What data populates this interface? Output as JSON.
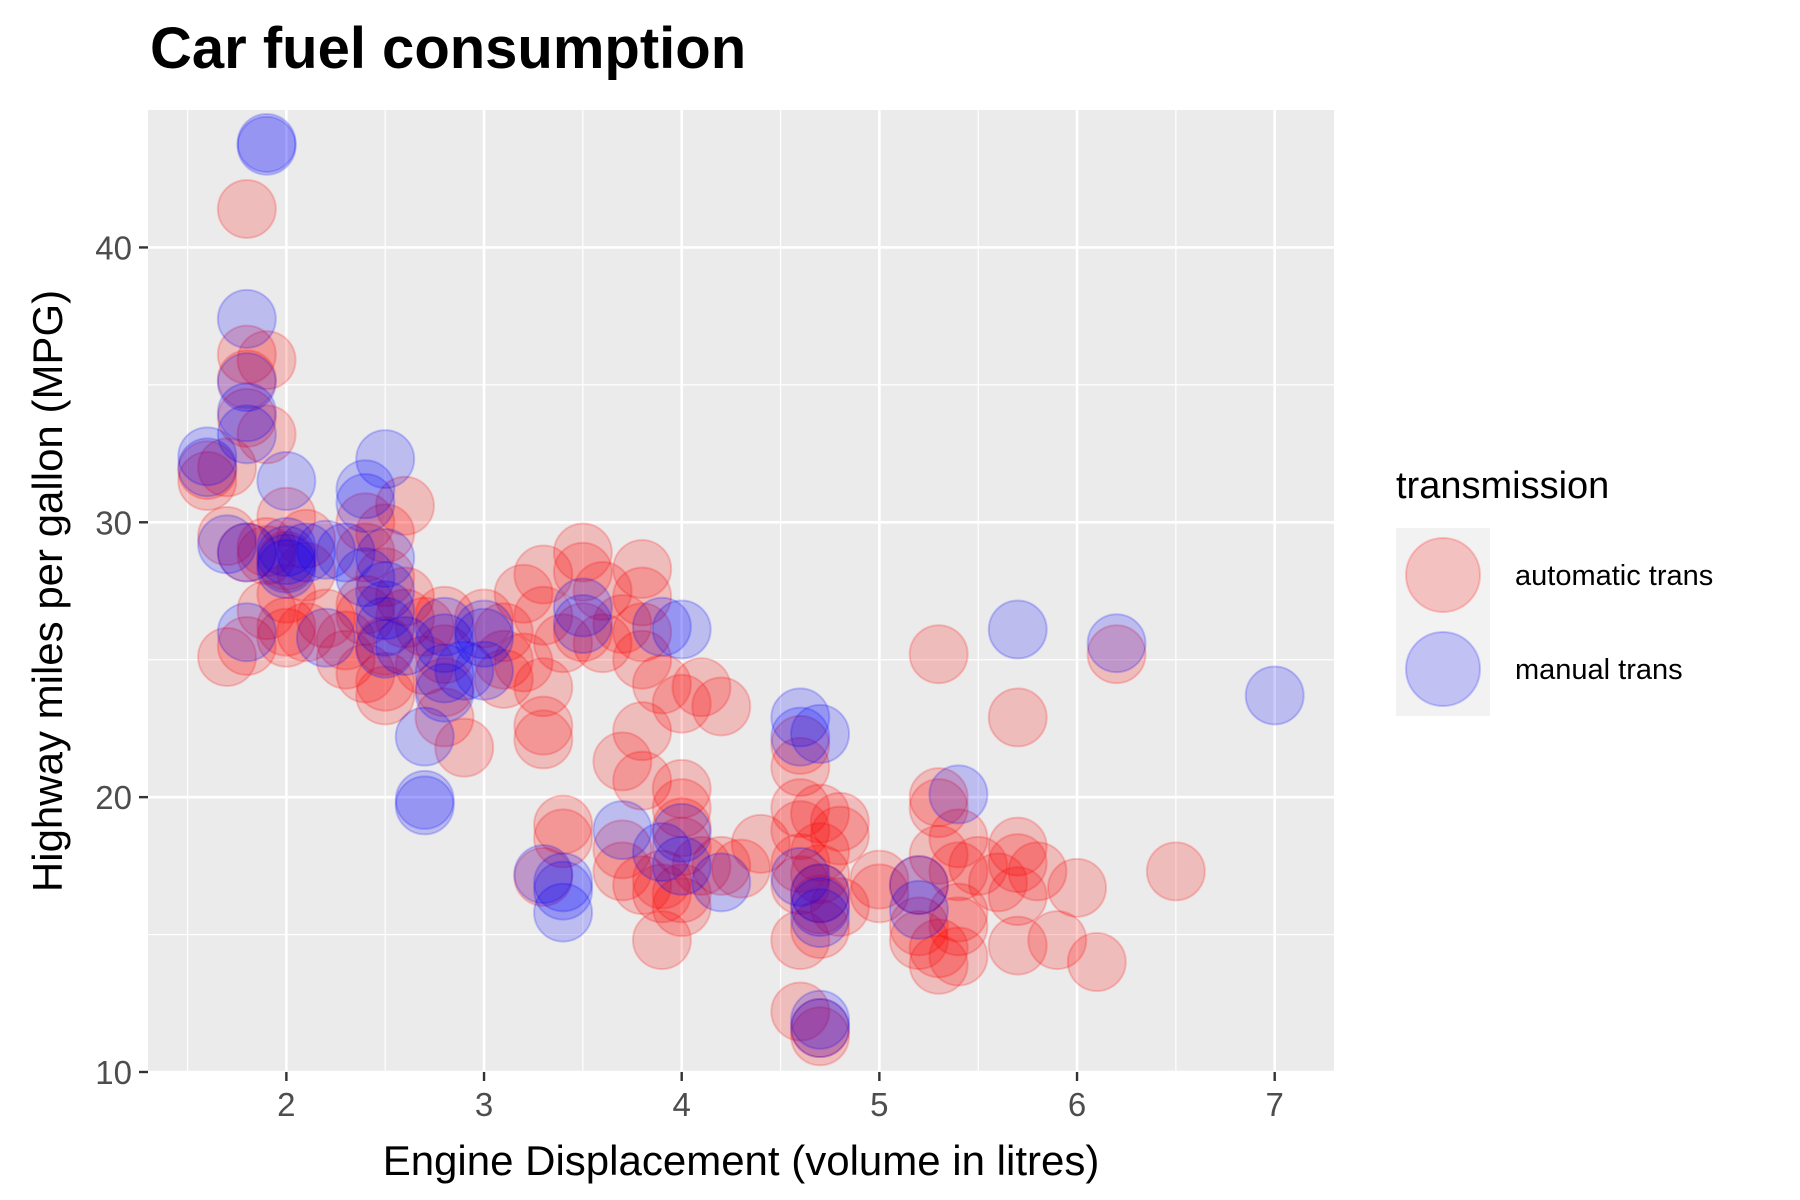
{
  "chart_data": {
    "type": "scatter",
    "title": "Car fuel consumption",
    "xlabel": "Engine Displacement (volume in litres)",
    "ylabel": "Highway miles per gallon (MPG)",
    "xlim": [
      1.3,
      7.3
    ],
    "ylim": [
      10,
      45
    ],
    "xticks": [
      2,
      3,
      4,
      5,
      6,
      7
    ],
    "yticks": [
      10,
      20,
      30,
      40
    ],
    "grid": true,
    "background": "#ebebeb",
    "legend": {
      "title": "transmission",
      "position": "right",
      "entries": [
        "automatic trans",
        "manual trans"
      ]
    },
    "series": [
      {
        "name": "automatic trans",
        "color": "#ff0000",
        "opacity": 0.2,
        "points": [
          [
            1.6,
            31.5
          ],
          [
            1.7,
            32.0
          ],
          [
            1.6,
            31.9
          ],
          [
            1.8,
            41.4
          ],
          [
            1.8,
            36.1
          ],
          [
            1.9,
            35.9
          ],
          [
            1.8,
            35.2
          ],
          [
            1.9,
            33.2
          ],
          [
            1.8,
            33.8
          ],
          [
            1.7,
            29.5
          ],
          [
            1.8,
            28.9
          ],
          [
            1.9,
            29.1
          ],
          [
            1.7,
            25.1
          ],
          [
            1.8,
            25.5
          ],
          [
            2.0,
            30.2
          ],
          [
            2.1,
            29.4
          ],
          [
            1.9,
            28.8
          ],
          [
            2.0,
            28.6
          ],
          [
            2.1,
            28.2
          ],
          [
            2.0,
            27.4
          ],
          [
            1.9,
            26.8
          ],
          [
            2.0,
            26.2
          ],
          [
            2.1,
            26.0
          ],
          [
            2.0,
            25.8
          ],
          [
            2.2,
            26.5
          ],
          [
            2.3,
            25.7
          ],
          [
            2.4,
            27.0
          ],
          [
            2.4,
            26.6
          ],
          [
            2.5,
            25.5
          ],
          [
            2.3,
            25.0
          ],
          [
            2.4,
            24.5
          ],
          [
            2.5,
            24.2
          ],
          [
            2.5,
            23.7
          ],
          [
            2.4,
            30.0
          ],
          [
            2.5,
            29.6
          ],
          [
            2.4,
            28.9
          ],
          [
            2.6,
            30.6
          ],
          [
            2.5,
            28.0
          ],
          [
            2.6,
            27.3
          ],
          [
            2.6,
            26.5
          ],
          [
            2.7,
            26.2
          ],
          [
            2.8,
            26.6
          ],
          [
            2.8,
            25.2
          ],
          [
            2.7,
            24.8
          ],
          [
            2.8,
            24.0
          ],
          [
            2.8,
            22.9
          ],
          [
            2.9,
            21.8
          ],
          [
            3.0,
            26.5
          ],
          [
            3.1,
            26.0
          ],
          [
            3.1,
            25.0
          ],
          [
            3.2,
            27.4
          ],
          [
            3.3,
            28.1
          ],
          [
            3.3,
            26.6
          ],
          [
            3.2,
            24.9
          ],
          [
            3.3,
            24.0
          ],
          [
            3.1,
            24.3
          ],
          [
            3.3,
            22.6
          ],
          [
            3.3,
            22.1
          ],
          [
            3.4,
            25.6
          ],
          [
            3.5,
            28.9
          ],
          [
            3.5,
            28.2
          ],
          [
            3.6,
            27.5
          ],
          [
            3.5,
            26.0
          ],
          [
            3.6,
            25.6
          ],
          [
            3.7,
            26.3
          ],
          [
            3.8,
            28.3
          ],
          [
            3.8,
            27.3
          ],
          [
            3.8,
            26.0
          ],
          [
            3.8,
            25.0
          ],
          [
            3.9,
            24.1
          ],
          [
            4.0,
            23.4
          ],
          [
            4.1,
            24.0
          ],
          [
            4.2,
            23.3
          ],
          [
            3.8,
            22.4
          ],
          [
            3.7,
            21.3
          ],
          [
            3.8,
            20.6
          ],
          [
            3.4,
            19.0
          ],
          [
            3.4,
            18.5
          ],
          [
            3.3,
            17.1
          ],
          [
            3.7,
            18.1
          ],
          [
            3.7,
            17.3
          ],
          [
            3.8,
            16.8
          ],
          [
            3.9,
            16.5
          ],
          [
            3.9,
            14.8
          ],
          [
            4.0,
            20.3
          ],
          [
            4.0,
            19.6
          ],
          [
            4.0,
            18.9
          ],
          [
            4.0,
            18.2
          ],
          [
            4.1,
            17.5
          ],
          [
            3.9,
            17.0
          ],
          [
            4.0,
            16.5
          ],
          [
            4.0,
            16.0
          ],
          [
            4.2,
            17.5
          ],
          [
            4.4,
            18.3
          ],
          [
            4.3,
            17.4
          ],
          [
            4.6,
            21.9
          ],
          [
            4.6,
            21.1
          ],
          [
            4.6,
            19.6
          ],
          [
            4.7,
            19.4
          ],
          [
            4.6,
            18.8
          ],
          [
            4.7,
            18.0
          ],
          [
            4.8,
            19.1
          ],
          [
            4.6,
            17.6
          ],
          [
            4.7,
            17.2
          ],
          [
            4.6,
            16.8
          ],
          [
            4.7,
            16.5
          ],
          [
            4.7,
            16.1
          ],
          [
            4.7,
            15.2
          ],
          [
            4.6,
            14.8
          ],
          [
            4.6,
            12.2
          ],
          [
            4.7,
            11.6
          ],
          [
            4.7,
            11.3
          ],
          [
            5.0,
            17.0
          ],
          [
            5.0,
            16.5
          ],
          [
            5.2,
            16.8
          ],
          [
            5.2,
            15.3
          ],
          [
            5.3,
            14.5
          ],
          [
            5.3,
            13.9
          ],
          [
            5.4,
            15.8
          ],
          [
            5.4,
            15.3
          ],
          [
            5.3,
            20.0
          ],
          [
            5.3,
            19.6
          ],
          [
            5.4,
            18.5
          ],
          [
            5.3,
            17.9
          ],
          [
            5.4,
            17.3
          ],
          [
            5.5,
            17.5
          ],
          [
            5.6,
            16.9
          ],
          [
            5.3,
            25.2
          ],
          [
            5.7,
            22.9
          ],
          [
            5.7,
            18.2
          ],
          [
            5.7,
            17.6
          ],
          [
            5.8,
            17.3
          ],
          [
            5.7,
            16.4
          ],
          [
            5.7,
            14.6
          ],
          [
            5.9,
            14.8
          ],
          [
            6.0,
            16.7
          ],
          [
            6.1,
            14.0
          ],
          [
            6.2,
            25.2
          ],
          [
            6.5,
            17.3
          ],
          [
            5.2,
            14.8
          ],
          [
            5.4,
            14.2
          ],
          [
            4.8,
            16.0
          ],
          [
            4.8,
            18.6
          ]
        ]
      },
      {
        "name": "manual trans",
        "color": "#0000ff",
        "opacity": 0.2,
        "points": [
          [
            1.9,
            43.8
          ],
          [
            1.9,
            43.7
          ],
          [
            1.8,
            37.4
          ],
          [
            1.8,
            35.1
          ],
          [
            1.8,
            34.0
          ],
          [
            1.8,
            33.2
          ],
          [
            1.6,
            32.4
          ],
          [
            1.6,
            32.0
          ],
          [
            1.7,
            29.2
          ],
          [
            1.8,
            28.9
          ],
          [
            1.8,
            26.0
          ],
          [
            2.0,
            31.5
          ],
          [
            2.0,
            29.1
          ],
          [
            2.0,
            28.8
          ],
          [
            2.0,
            28.5
          ],
          [
            2.0,
            28.3
          ],
          [
            2.1,
            28.9
          ],
          [
            2.2,
            29.0
          ],
          [
            2.3,
            28.9
          ],
          [
            2.2,
            25.8
          ],
          [
            2.4,
            31.2
          ],
          [
            2.4,
            30.7
          ],
          [
            2.5,
            32.3
          ],
          [
            2.4,
            28.0
          ],
          [
            2.5,
            28.7
          ],
          [
            2.5,
            27.5
          ],
          [
            2.5,
            26.8
          ],
          [
            2.5,
            26.2
          ],
          [
            2.5,
            25.4
          ],
          [
            2.6,
            25.5
          ],
          [
            2.8,
            26.2
          ],
          [
            2.8,
            25.6
          ],
          [
            2.8,
            24.5
          ],
          [
            2.8,
            23.8
          ],
          [
            2.7,
            22.2
          ],
          [
            2.7,
            19.9
          ],
          [
            2.7,
            19.7
          ],
          [
            2.9,
            24.6
          ],
          [
            3.0,
            26.1
          ],
          [
            3.0,
            25.8
          ],
          [
            3.0,
            24.6
          ],
          [
            3.3,
            17.2
          ],
          [
            3.4,
            16.9
          ],
          [
            3.4,
            16.6
          ],
          [
            3.4,
            15.8
          ],
          [
            3.5,
            26.9
          ],
          [
            3.5,
            26.3
          ],
          [
            3.7,
            18.8
          ],
          [
            3.9,
            26.2
          ],
          [
            4.0,
            26.1
          ],
          [
            4.0,
            18.7
          ],
          [
            3.9,
            18.0
          ],
          [
            4.0,
            17.5
          ],
          [
            4.2,
            16.9
          ],
          [
            4.6,
            22.9
          ],
          [
            4.6,
            22.2
          ],
          [
            4.7,
            22.3
          ],
          [
            4.6,
            17.1
          ],
          [
            4.7,
            16.5
          ],
          [
            4.7,
            16.0
          ],
          [
            4.7,
            15.6
          ],
          [
            4.7,
            11.9
          ],
          [
            4.7,
            11.6
          ],
          [
            5.2,
            16.8
          ],
          [
            5.2,
            15.9
          ],
          [
            5.4,
            20.1
          ],
          [
            5.7,
            26.1
          ],
          [
            6.2,
            25.6
          ],
          [
            7.0,
            23.7
          ]
        ]
      }
    ]
  }
}
